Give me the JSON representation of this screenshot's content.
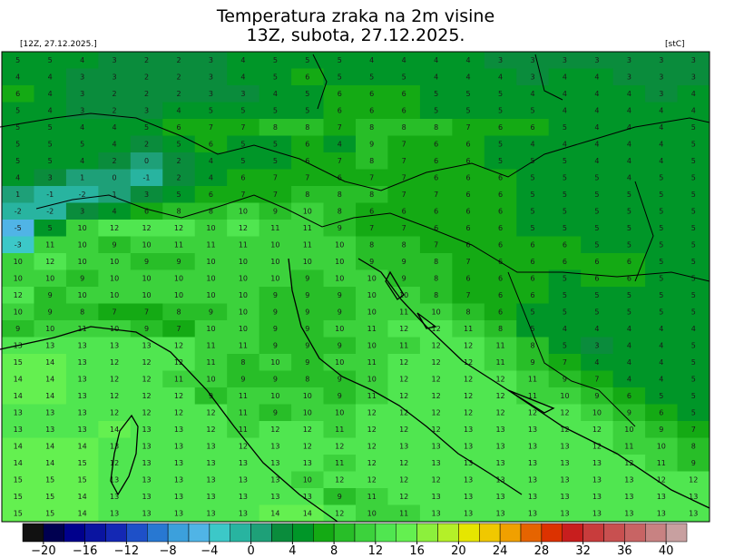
{
  "header": {
    "title_line1": "Temperatura zraka na 2m visine",
    "title_line2": "13Z, subota, 27.12.2025.",
    "run_label": "[12Z, 27.12.2025.]",
    "unit_label": "[stC]"
  },
  "map": {
    "grid": [
      [
        5,
        5,
        4,
        3,
        2,
        2,
        3,
        4,
        5,
        5,
        5,
        4,
        4,
        4,
        4,
        3,
        3,
        3,
        3,
        3,
        3,
        3
      ],
      [
        4,
        4,
        3,
        3,
        2,
        2,
        3,
        4,
        5,
        6,
        5,
        5,
        5,
        4,
        4,
        4,
        3,
        4,
        4,
        3,
        3,
        3
      ],
      [
        6,
        4,
        3,
        2,
        2,
        2,
        3,
        3,
        4,
        5,
        6,
        6,
        6,
        5,
        5,
        5,
        4,
        4,
        4,
        4,
        3,
        4
      ],
      [
        5,
        4,
        3,
        2,
        3,
        4,
        5,
        5,
        5,
        5,
        6,
        6,
        6,
        5,
        5,
        5,
        5,
        4,
        4,
        4,
        4,
        4
      ],
      [
        5,
        5,
        4,
        4,
        5,
        6,
        7,
        7,
        8,
        8,
        7,
        8,
        8,
        8,
        7,
        6,
        6,
        5,
        4,
        4,
        4,
        5
      ],
      [
        5,
        5,
        5,
        4,
        2,
        5,
        6,
        5,
        5,
        6,
        4,
        9,
        7,
        6,
        6,
        5,
        4,
        4,
        4,
        4,
        4,
        5
      ],
      [
        5,
        5,
        4,
        2,
        0,
        2,
        4,
        5,
        5,
        6,
        7,
        8,
        7,
        6,
        6,
        5,
        5,
        5,
        4,
        4,
        4,
        5
      ],
      [
        4,
        3,
        1,
        0,
        -1,
        2,
        4,
        6,
        7,
        7,
        6,
        7,
        7,
        6,
        6,
        6,
        5,
        5,
        5,
        4,
        5,
        5
      ],
      [
        1,
        -1,
        -2,
        1,
        3,
        5,
        6,
        7,
        7,
        8,
        8,
        8,
        7,
        7,
        6,
        6,
        5,
        5,
        5,
        5,
        5,
        5
      ],
      [
        -2,
        -2,
        3,
        4,
        6,
        8,
        8,
        10,
        9,
        10,
        8,
        6,
        6,
        6,
        6,
        6,
        5,
        5,
        5,
        5,
        5,
        5
      ],
      [
        -5,
        5,
        10,
        12,
        12,
        12,
        10,
        12,
        11,
        11,
        9,
        7,
        7,
        6,
        6,
        6,
        5,
        5,
        5,
        5,
        5,
        5
      ],
      [
        -3,
        11,
        10,
        9,
        10,
        11,
        11,
        11,
        10,
        11,
        10,
        8,
        8,
        7,
        6,
        6,
        6,
        6,
        5,
        5,
        5,
        5
      ],
      [
        10,
        12,
        10,
        10,
        9,
        9,
        10,
        10,
        10,
        10,
        10,
        9,
        9,
        8,
        7,
        6,
        6,
        6,
        6,
        6,
        5,
        5
      ],
      [
        10,
        10,
        9,
        10,
        10,
        10,
        10,
        10,
        10,
        9,
        10,
        10,
        9,
        8,
        6,
        6,
        6,
        5,
        6,
        6,
        5,
        5
      ],
      [
        12,
        9,
        10,
        10,
        10,
        10,
        10,
        10,
        9,
        9,
        9,
        10,
        10,
        8,
        7,
        6,
        6,
        5,
        5,
        5,
        5,
        5
      ],
      [
        10,
        9,
        8,
        7,
        7,
        8,
        9,
        10,
        9,
        9,
        9,
        10,
        11,
        10,
        8,
        6,
        5,
        5,
        5,
        5,
        5,
        5
      ],
      [
        9,
        10,
        11,
        10,
        9,
        7,
        10,
        10,
        9,
        9,
        10,
        11,
        12,
        12,
        11,
        8,
        5,
        4,
        4,
        4,
        4,
        4
      ],
      [
        13,
        13,
        13,
        13,
        13,
        12,
        11,
        11,
        9,
        9,
        9,
        10,
        11,
        12,
        12,
        11,
        8,
        5,
        3,
        4,
        4,
        5
      ],
      [
        15,
        14,
        13,
        12,
        12,
        12,
        11,
        8,
        10,
        9,
        10,
        11,
        12,
        12,
        12,
        11,
        9,
        7,
        4,
        4,
        4,
        5
      ],
      [
        14,
        14,
        13,
        12,
        12,
        11,
        10,
        9,
        9,
        8,
        9,
        10,
        12,
        12,
        12,
        12,
        11,
        9,
        7,
        4,
        4,
        5
      ],
      [
        14,
        14,
        13,
        12,
        12,
        12,
        9,
        11,
        10,
        10,
        9,
        11,
        12,
        12,
        12,
        12,
        11,
        10,
        9,
        6,
        5,
        5
      ],
      [
        13,
        13,
        13,
        12,
        12,
        12,
        12,
        11,
        9,
        10,
        10,
        12,
        12,
        12,
        12,
        12,
        12,
        12,
        10,
        9,
        6,
        5
      ],
      [
        13,
        13,
        13,
        14,
        13,
        13,
        12,
        11,
        12,
        12,
        11,
        12,
        12,
        12,
        13,
        13,
        13,
        12,
        12,
        10,
        9,
        7
      ],
      [
        14,
        14,
        14,
        13,
        13,
        13,
        13,
        12,
        13,
        12,
        12,
        12,
        13,
        13,
        13,
        13,
        13,
        13,
        12,
        11,
        10,
        8
      ],
      [
        14,
        14,
        15,
        12,
        13,
        13,
        13,
        13,
        13,
        13,
        11,
        12,
        12,
        13,
        13,
        13,
        13,
        13,
        13,
        12,
        11,
        9
      ],
      [
        15,
        15,
        15,
        13,
        13,
        13,
        13,
        13,
        13,
        10,
        12,
        12,
        12,
        12,
        13,
        13,
        13,
        13,
        13,
        13,
        12,
        12
      ],
      [
        15,
        15,
        14,
        13,
        13,
        13,
        13,
        13,
        13,
        13,
        9,
        11,
        12,
        13,
        13,
        13,
        13,
        13,
        13,
        13,
        13,
        13
      ],
      [
        15,
        15,
        14,
        13,
        13,
        13,
        13,
        13,
        14,
        14,
        12,
        10,
        11,
        13,
        13,
        13,
        13,
        13,
        13,
        13,
        13,
        13
      ]
    ]
  },
  "colorbar": {
    "lim": [
      -22,
      42
    ],
    "ticks": [
      {
        "value": -20,
        "label": "−20"
      },
      {
        "value": -16,
        "label": "−16"
      },
      {
        "value": -12,
        "label": "−12"
      },
      {
        "value": -8,
        "label": "−8"
      },
      {
        "value": -4,
        "label": "−4"
      },
      0,
      4,
      8,
      12,
      16,
      20,
      24,
      28,
      32,
      36,
      40
    ],
    "colors": [
      "#111111",
      "#000050",
      "#00008c",
      "#0a14a0",
      "#1428b4",
      "#1e50c8",
      "#2878d2",
      "#3ca0dc",
      "#50b4e6",
      "#3cc8c8",
      "#28b4a0",
      "#1ea078",
      "#0a8c3c",
      "#009628",
      "#14aa14",
      "#28be28",
      "#3cd23c",
      "#50e650",
      "#64f050",
      "#8cf03c",
      "#b4f028",
      "#e6e600",
      "#f0c800",
      "#f0a000",
      "#e66400",
      "#dc3200",
      "#c81e1e",
      "#c83c3c",
      "#c85050",
      "#c86464",
      "#c88282",
      "#c8a0a0"
    ]
  }
}
